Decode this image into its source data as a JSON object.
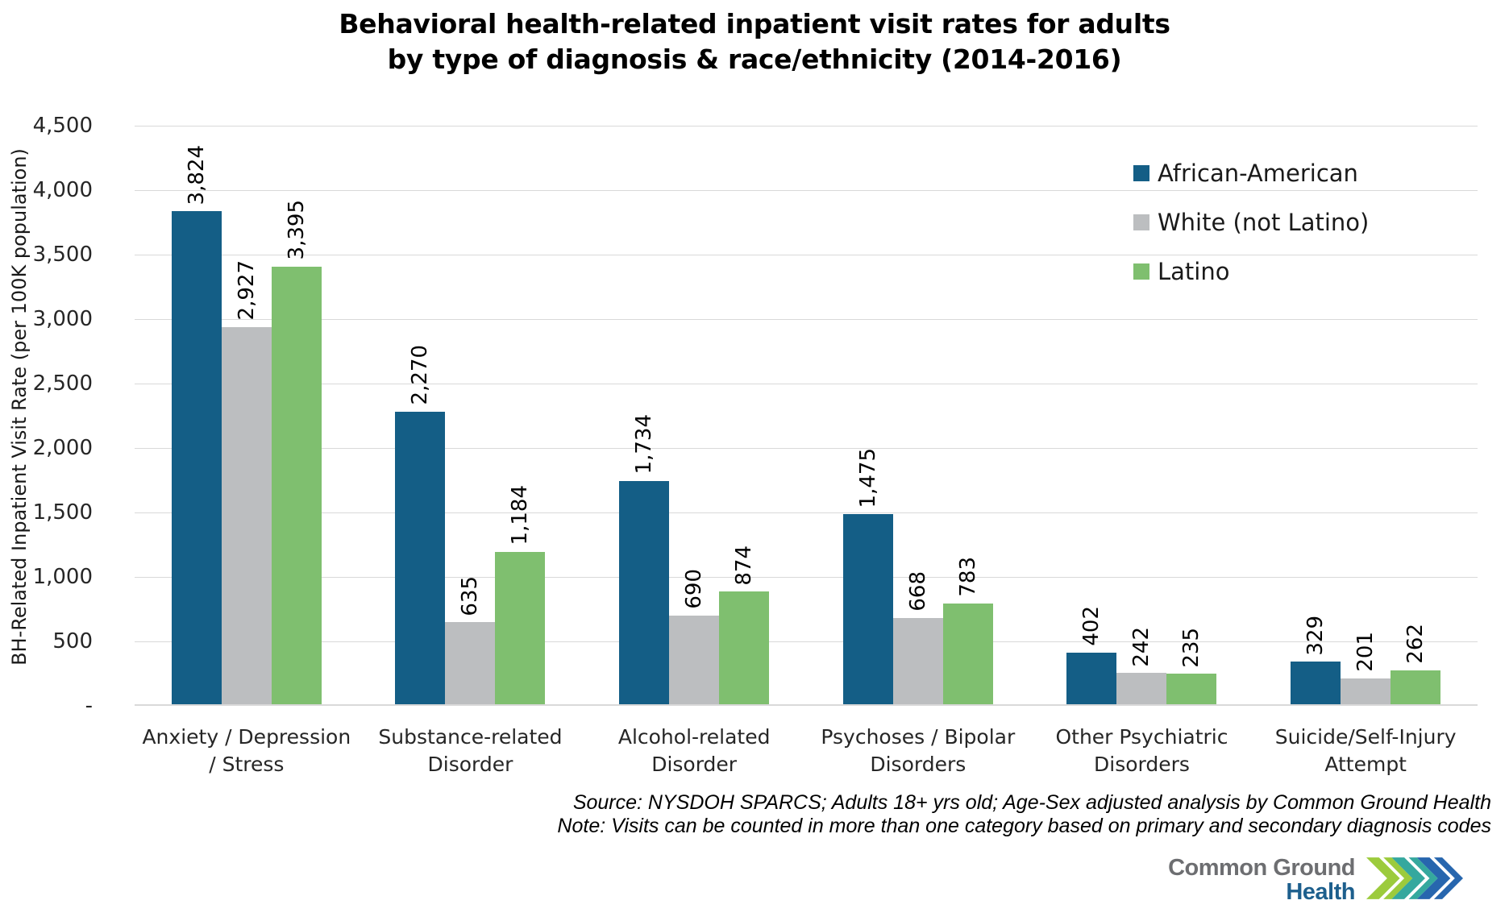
{
  "title": {
    "line1": "Behavioral health-related inpatient visit rates for adults",
    "line2": "by type of diagnosis & race/ethnicity (2014-2016)"
  },
  "chart_data": {
    "type": "bar",
    "title": "Behavioral health-related inpatient visit rates for adults by type of diagnosis & race/ethnicity (2014-2016)",
    "ylabel": "BH-Related Inpatient Visit Rate (per 100K population)",
    "xlabel": "",
    "ylim": [
      0,
      4500
    ],
    "ytick_step": 500,
    "ytick_labels": [
      "4,500",
      "4,000",
      "3,500",
      "3,000",
      "2,500",
      "2,000",
      "1,500",
      "1,000",
      "500",
      "-"
    ],
    "grid": true,
    "legend_position": "top-right",
    "categories": [
      [
        "Anxiety / Depression",
        "/ Stress"
      ],
      [
        "Substance-related",
        "Disorder"
      ],
      [
        "Alcohol-related",
        "Disorder"
      ],
      [
        "Psychoses / Bipolar",
        "Disorders"
      ],
      [
        "Other Psychiatric",
        "Disorders"
      ],
      [
        "Suicide/Self-Injury",
        "Attempt"
      ]
    ],
    "series": [
      {
        "name": "African-American",
        "color": "#145e86",
        "values": [
          3824,
          2270,
          1734,
          1475,
          402,
          329
        ]
      },
      {
        "name": "White (not Latino)",
        "color": "#bcbec0",
        "values": [
          2927,
          635,
          690,
          668,
          242,
          201
        ]
      },
      {
        "name": "Latino",
        "color": "#7fbf6f",
        "values": [
          3395,
          1184,
          874,
          783,
          235,
          262
        ]
      }
    ],
    "value_labels": [
      [
        "3,824",
        "2,270",
        "1,734",
        "1,475",
        "402",
        "329"
      ],
      [
        "2,927",
        "635",
        "690",
        "668",
        "242",
        "201"
      ],
      [
        "3,395",
        "1,184",
        "874",
        "783",
        "235",
        "262"
      ]
    ]
  },
  "footer": {
    "source_line1": "Source: NYSDOH SPARCS; Adults 18+ yrs old; Age-Sex adjusted analysis by Common Ground Health",
    "source_line2": "Note: Visits can be counted in more than one category based on primary and secondary diagnosis codes"
  },
  "logo": {
    "text_line1": "Common Ground",
    "text_line2": "Health",
    "text_color1": "#6d6e71",
    "text_color2": "#1d5f8d",
    "chevron_colors": [
      "#9ccb3c",
      "#35a89e",
      "#2766ae"
    ]
  },
  "colors": {
    "gridline": "#d9d9d9",
    "axis_line": "#d9d9d9",
    "text": "#000000"
  }
}
